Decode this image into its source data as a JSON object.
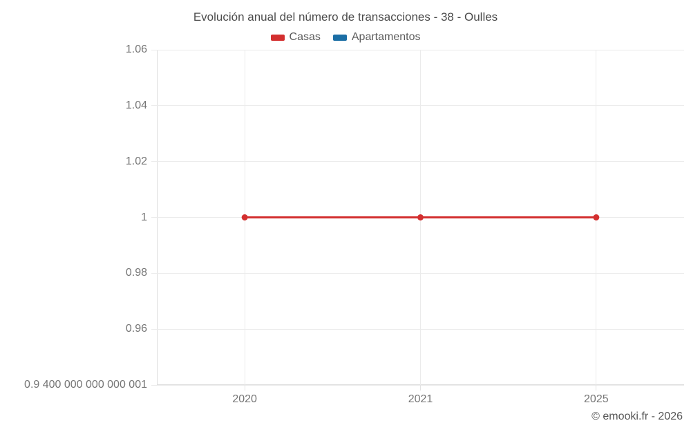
{
  "footer": {
    "copyright": "© emooki.fr - 2026"
  },
  "chart_data": {
    "type": "line",
    "title": "Evolución anual del número de transacciones - 38 - Oulles",
    "categories": [
      "2020",
      "2021",
      "2025"
    ],
    "series": [
      {
        "name": "Casas",
        "color": "#d32f2f",
        "values": [
          1,
          1,
          1
        ]
      },
      {
        "name": "Apartamentos",
        "color": "#1b6ea5",
        "values": [
          null,
          null,
          null
        ]
      }
    ],
    "yticks": [
      {
        "value": 1.06,
        "label": "1.06"
      },
      {
        "value": 1.04,
        "label": "1.04"
      },
      {
        "value": 1.02,
        "label": "1.02"
      },
      {
        "value": 1,
        "label": "1"
      },
      {
        "value": 0.98,
        "label": "0.98"
      },
      {
        "value": 0.96,
        "label": "0.96"
      },
      {
        "value": 0.9400000000000001,
        "label": "0.9 400 000 000 000 001"
      }
    ],
    "ylim": [
      0.9400000000000001,
      1.06
    ],
    "grid": true,
    "legend_position": "top",
    "marker_radius": 4.5,
    "line_width": 3
  }
}
